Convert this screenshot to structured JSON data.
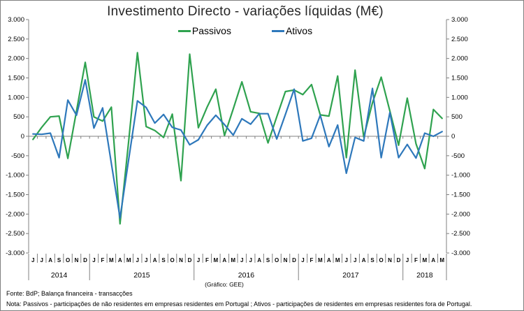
{
  "chart": {
    "title": "Investimento Directo - variações líquidas (M€)",
    "legend": [
      {
        "label": "Passivos",
        "color": "#2fa24f"
      },
      {
        "label": "Ativos",
        "color": "#2e78bb"
      }
    ],
    "axis_color": "#808080",
    "text_color": "#000000"
  },
  "chart_data": {
    "type": "line",
    "title": "Investimento Directo - variações líquidas (M€)",
    "ylim": [
      -3000,
      3000
    ],
    "y_step": 500,
    "y_tick_labels": [
      "3.000",
      "2.500",
      "2.000",
      "1.500",
      "1.000",
      "500",
      "0",
      "-500",
      "-1.000",
      "-1.500",
      "-2.000",
      "-2.500",
      "-3.000"
    ],
    "grid": false,
    "legend_position": "top-center",
    "months": [
      "J",
      "J",
      "A",
      "S",
      "O",
      "N",
      "D",
      "J",
      "F",
      "M",
      "A",
      "M",
      "J",
      "J",
      "A",
      "S",
      "O",
      "N",
      "D",
      "J",
      "F",
      "M",
      "A",
      "M",
      "J",
      "J",
      "A",
      "S",
      "O",
      "N",
      "D",
      "J",
      "F",
      "M",
      "A",
      "M",
      "J",
      "J",
      "A",
      "S",
      "O",
      "N",
      "D",
      "J",
      "F",
      "M",
      "A",
      "M"
    ],
    "years": [
      {
        "label": "2014",
        "start": 0,
        "end": 6
      },
      {
        "label": "2015",
        "start": 7,
        "end": 18
      },
      {
        "label": "2016",
        "start": 19,
        "end": 30
      },
      {
        "label": "2017",
        "start": 31,
        "end": 42
      },
      {
        "label": "2018",
        "start": 43,
        "end": 47
      }
    ],
    "series": [
      {
        "name": "Passivos",
        "color": "#2fa24f",
        "values": [
          -80,
          230,
          500,
          520,
          -570,
          650,
          1900,
          500,
          390,
          750,
          -2250,
          -100,
          2150,
          250,
          150,
          -30,
          570,
          -1140,
          2110,
          220,
          750,
          1210,
          20,
          700,
          1400,
          630,
          590,
          -170,
          500,
          1150,
          1190,
          1070,
          1330,
          550,
          520,
          1550,
          -550,
          1700,
          -20,
          860,
          1520,
          650,
          -230,
          980,
          -190,
          -830,
          690,
          460
        ]
      },
      {
        "name": "Ativos",
        "color": "#2e78bb",
        "values": [
          60,
          50,
          80,
          -550,
          930,
          540,
          1450,
          210,
          730,
          -700,
          -2100,
          -580,
          910,
          740,
          340,
          560,
          230,
          160,
          -220,
          -90,
          280,
          540,
          300,
          30,
          450,
          310,
          580,
          580,
          -70,
          560,
          1210,
          -120,
          -50,
          540,
          -265,
          290,
          -950,
          -30,
          -120,
          1230,
          -550,
          610,
          -550,
          -210,
          -560,
          80,
          0,
          120
        ]
      }
    ]
  },
  "footer": {
    "credit": "(Gráfico: GEE)",
    "fonte": "Fonte: BdP; Balança financeira - transacções",
    "nota": "Nota: Passivos - participações de não residentes em empresas residentes em Portugal ; Ativos -  participações de residentes em empresas residentes fora de Portugal."
  }
}
